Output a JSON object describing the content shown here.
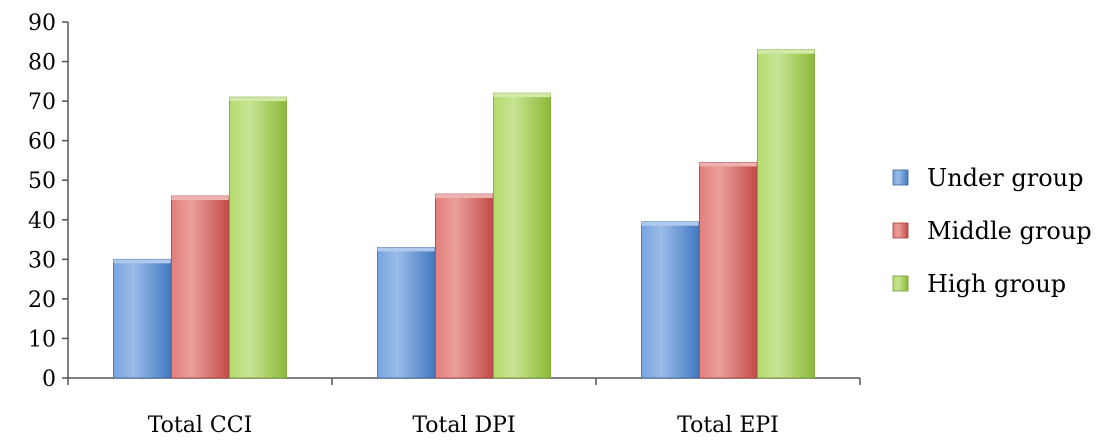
{
  "chart_data": {
    "type": "bar",
    "categories": [
      "Total CCI",
      "Total DPI",
      "Total EPI"
    ],
    "series": [
      {
        "name": "Under group",
        "values": [
          30,
          33,
          39.5
        ],
        "color": "#4a86d6"
      },
      {
        "name": "Middle group",
        "values": [
          46,
          46.5,
          54.5
        ],
        "color": "#d9534f"
      },
      {
        "name": "High group",
        "values": [
          71,
          72,
          83
        ],
        "color": "#9bce3c"
      }
    ],
    "ylim": [
      0,
      90
    ],
    "yticks": [
      0,
      10,
      20,
      30,
      40,
      50,
      60,
      70,
      80,
      90
    ],
    "title": "",
    "xlabel": "",
    "ylabel": "",
    "grid": false,
    "legend_position": "right"
  }
}
